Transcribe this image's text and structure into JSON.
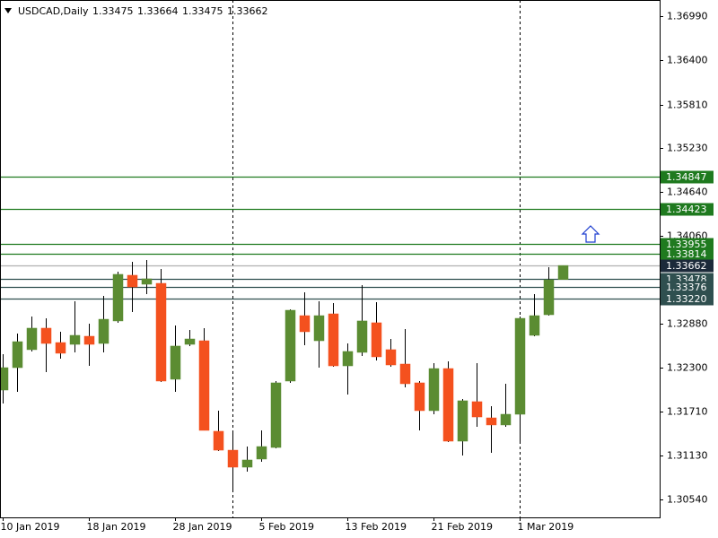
{
  "chart_data": {
    "type": "candlestick",
    "title": "USDCAD,Daily",
    "categories": [
      "10 Jan 2019",
      null,
      null,
      null,
      null,
      null,
      "18 Jan 2019",
      null,
      null,
      null,
      null,
      null,
      "28 Jan 2019",
      null,
      null,
      null,
      null,
      null,
      "5 Feb 2019",
      null,
      null,
      null,
      null,
      null,
      "13 Feb 2019",
      null,
      null,
      null,
      null,
      null,
      "21 Feb 2019",
      null,
      null,
      null,
      null,
      null,
      "1 Mar 2019",
      null,
      null,
      null
    ],
    "open": [
      1.32,
      1.32299,
      1.32539,
      1.32826,
      1.32634,
      1.3261,
      1.32718,
      1.32622,
      1.32922,
      1.33532,
      1.33412,
      1.33424,
      1.32144,
      1.3261,
      1.32658,
      1.3145,
      1.31198,
      1.30971,
      1.31079,
      1.31234,
      1.3212,
      1.32993,
      1.32658,
      1.33017,
      1.32323,
      1.32503,
      1.32898,
      1.32539,
      1.32347,
      1.32096,
      1.31725,
      1.32287,
      1.31318,
      1.31845,
      1.31629,
      1.31534,
      1.31677,
      1.3273,
      1.33005,
      1.33475
    ],
    "high": [
      1.32479,
      1.32754,
      1.32981,
      1.32957,
      1.32778,
      1.33185,
      1.32886,
      1.33257,
      1.3358,
      1.33711,
      1.33735,
      1.33616,
      1.32862,
      1.32802,
      1.32826,
      1.31725,
      1.31462,
      1.31246,
      1.31462,
      1.3212,
      1.33077,
      1.33304,
      1.33185,
      1.33161,
      1.32622,
      1.334,
      1.33173,
      1.32682,
      1.32814,
      1.3212,
      1.32359,
      1.32383,
      1.3188,
      1.32359,
      1.31785,
      1.32084,
      1.32981,
      1.33281,
      1.3364,
      1.33664
    ],
    "low": [
      1.31821,
      1.31976,
      1.32515,
      1.32239,
      1.32419,
      1.32503,
      1.32323,
      1.32503,
      1.32898,
      1.33041,
      1.33281,
      1.32108,
      1.31976,
      1.32587,
      1.31462,
      1.31186,
      1.30648,
      1.30911,
      1.31043,
      1.31222,
      1.32096,
      1.32598,
      1.32299,
      1.32311,
      1.3194,
      1.32455,
      1.32395,
      1.32311,
      1.32036,
      1.31462,
      1.31677,
      1.31306,
      1.31127,
      1.3151,
      1.31163,
      1.3151,
      1.31282,
      1.32718,
      1.32993,
      1.33475
    ],
    "close": [
      1.32299,
      1.32646,
      1.32826,
      1.32622,
      1.32491,
      1.3273,
      1.3261,
      1.32945,
      1.33544,
      1.33376,
      1.33484,
      1.3212,
      1.32587,
      1.32682,
      1.31462,
      1.31198,
      1.30971,
      1.31067,
      1.31246,
      1.32096,
      1.33065,
      1.32778,
      1.32993,
      1.32323,
      1.32515,
      1.32922,
      1.32443,
      1.32335,
      1.32084,
      1.31725,
      1.32287,
      1.31318,
      1.31857,
      1.31641,
      1.31534,
      1.31677,
      1.32957,
      1.32993,
      1.33472,
      1.33662
    ],
    "up_color": "#5b8c32",
    "down_color": "#f4511e",
    "ylim": [
      1.30301,
      1.37205
    ],
    "yticks": [
      {
        "value": 1.3699,
        "label": "1.36990"
      },
      {
        "value": 1.364,
        "label": "1.36400"
      },
      {
        "value": 1.3581,
        "label": "1.35810"
      },
      {
        "value": 1.3523,
        "label": "1.35230"
      },
      {
        "value": 1.3464,
        "label": "1.34640"
      },
      {
        "value": 1.3406,
        "label": "1.34060"
      },
      {
        "value": 1.3288,
        "label": "1.32880"
      },
      {
        "value": 1.323,
        "label": "1.32300"
      },
      {
        "value": 1.3171,
        "label": "1.31710"
      },
      {
        "value": 1.3113,
        "label": "1.31130"
      },
      {
        "value": 1.3054,
        "label": "1.30540"
      }
    ],
    "levels": [
      {
        "value": 1.34847,
        "label": "1.34847",
        "color": "#1f7a1f",
        "label_color": "#1f7a1f"
      },
      {
        "value": 1.34423,
        "label": "1.34423",
        "color": "#1f7a1f",
        "label_color": "#1f7a1f"
      },
      {
        "value": 1.33955,
        "label": "1.33955",
        "color": "#1f7a1f",
        "label_color": "#1f7a1f"
      },
      {
        "value": 1.33814,
        "label": "1.33814",
        "color": "#1f7a1f",
        "label_color": "#1f7a1f"
      },
      {
        "value": 1.33662,
        "label": "1.33662",
        "color": "#b0b0b0",
        "label_color": "#1c2a3a"
      },
      {
        "value": 1.33478,
        "label": "1.33478",
        "color": "#2f4f4f",
        "label_color": "#2f4f4f"
      },
      {
        "value": 1.33376,
        "label": "1.33376",
        "color": "#2f4f4f",
        "label_color": "#2f4f4f"
      },
      {
        "value": 1.3322,
        "label": "1.33220",
        "color": "#2f4f4f",
        "label_color": "#2f4f4f"
      }
    ]
  }
}
